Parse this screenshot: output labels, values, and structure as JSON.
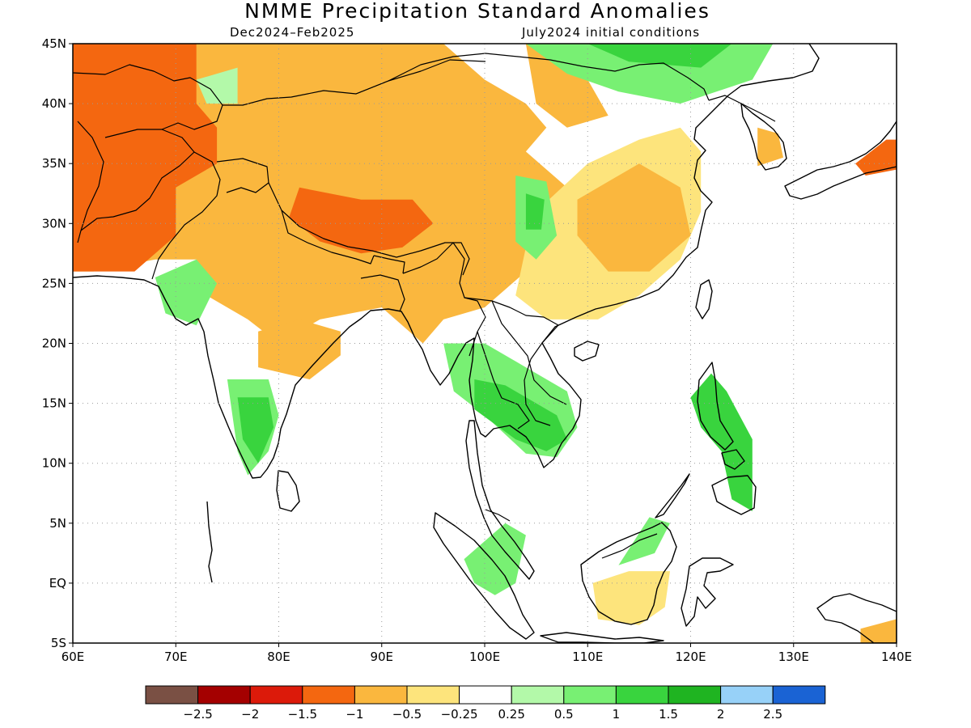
{
  "title": "NMME Precipitation Standard Anomalies",
  "subtitle_left": "Dec2024–Feb2025",
  "subtitle_right": "July2024 initial conditions",
  "map": {
    "lon_range": [
      60,
      140
    ],
    "lat_range": [
      -5,
      45
    ],
    "lon_ticks": [
      {
        "v": 60,
        "label": "60E"
      },
      {
        "v": 70,
        "label": "70E"
      },
      {
        "v": 80,
        "label": "80E"
      },
      {
        "v": 90,
        "label": "90E"
      },
      {
        "v": 100,
        "label": "100E"
      },
      {
        "v": 110,
        "label": "110E"
      },
      {
        "v": 120,
        "label": "120E"
      },
      {
        "v": 130,
        "label": "130E"
      },
      {
        "v": 140,
        "label": "140E"
      }
    ],
    "lat_ticks": [
      {
        "v": -5,
        "label": "5S"
      },
      {
        "v": 0,
        "label": "EQ"
      },
      {
        "v": 5,
        "label": "5N"
      },
      {
        "v": 10,
        "label": "10N"
      },
      {
        "v": 15,
        "label": "15N"
      },
      {
        "v": 20,
        "label": "20N"
      },
      {
        "v": 25,
        "label": "25N"
      },
      {
        "v": 30,
        "label": "30N"
      },
      {
        "v": 35,
        "label": "35N"
      },
      {
        "v": 40,
        "label": "40N"
      },
      {
        "v": 45,
        "label": "45N"
      }
    ],
    "grid": "dotted"
  },
  "legend": {
    "colors": [
      "#7a5044",
      "#a40000",
      "#dc1a0a",
      "#f46710",
      "#fab73e",
      "#fde47c",
      "#ffffff",
      "#b3f9a9",
      "#78f073",
      "#39d43e",
      "#1fb421",
      "#97d1f8",
      "#1a63d4"
    ],
    "labels": [
      "−2.5",
      "−2",
      "−1.5",
      "−1",
      "−0.5",
      "−0.25",
      "0.25",
      "0.5",
      "1",
      "1.5",
      "2",
      "2.5"
    ]
  },
  "anomaly_regions": [
    {
      "value": -0.5,
      "color": "#fab73e",
      "area": "Central Asia / Tibet / N China belt",
      "lonlat": [
        [
          60,
          45
        ],
        [
          96,
          45
        ],
        [
          100,
          42
        ],
        [
          104,
          40
        ],
        [
          106,
          38
        ],
        [
          104,
          36
        ],
        [
          108,
          33
        ],
        [
          104,
          30
        ],
        [
          104,
          26
        ],
        [
          100,
          23
        ],
        [
          96,
          22
        ],
        [
          94,
          20
        ],
        [
          90,
          23
        ],
        [
          84,
          22
        ],
        [
          80,
          20
        ],
        [
          77,
          22
        ],
        [
          73,
          24
        ],
        [
          72,
          27
        ],
        [
          68,
          27
        ],
        [
          62,
          26
        ],
        [
          60,
          26
        ]
      ]
    },
    {
      "value": -0.5,
      "color": "#fab73e",
      "area": "North Asia band",
      "lonlat": [
        [
          104,
          45
        ],
        [
          108,
          45
        ],
        [
          110,
          42
        ],
        [
          112,
          39
        ],
        [
          108,
          38
        ],
        [
          105,
          40
        ]
      ]
    },
    {
      "value": -1,
      "color": "#f46710",
      "area": "Afghanistan / Iran",
      "lonlat": [
        [
          60,
          45
        ],
        [
          72,
          45
        ],
        [
          72,
          40
        ],
        [
          74,
          38
        ],
        [
          74,
          35
        ],
        [
          70,
          33
        ],
        [
          70,
          29
        ],
        [
          66,
          26
        ],
        [
          60,
          26
        ]
      ]
    },
    {
      "value": -1,
      "color": "#f46710",
      "area": "Tibet",
      "lonlat": [
        [
          82,
          33
        ],
        [
          88,
          32
        ],
        [
          93,
          32
        ],
        [
          95,
          30
        ],
        [
          92,
          28
        ],
        [
          88,
          27.5
        ],
        [
          84,
          28.5
        ],
        [
          81,
          30.5
        ]
      ]
    },
    {
      "value": -0.5,
      "color": "#fab73e",
      "area": "Central India",
      "lonlat": [
        [
          78,
          21
        ],
        [
          82,
          22
        ],
        [
          86,
          21
        ],
        [
          86,
          19
        ],
        [
          83,
          17
        ],
        [
          78,
          18
        ]
      ]
    },
    {
      "value": -0.25,
      "color": "#fde47c",
      "area": "Eastern China",
      "lonlat": [
        [
          105,
          31
        ],
        [
          110,
          35
        ],
        [
          115,
          37
        ],
        [
          119,
          38
        ],
        [
          121,
          36
        ],
        [
          121,
          31
        ],
        [
          119,
          27
        ],
        [
          115,
          24
        ],
        [
          111,
          22
        ],
        [
          106,
          22
        ],
        [
          103,
          24
        ],
        [
          104,
          28
        ]
      ]
    },
    {
      "value": -0.5,
      "color": "#fab73e",
      "area": "East-central China",
      "lonlat": [
        [
          109,
          32
        ],
        [
          115,
          35
        ],
        [
          119,
          33
        ],
        [
          120,
          29
        ],
        [
          116,
          26
        ],
        [
          112,
          26
        ],
        [
          109,
          29
        ]
      ]
    },
    {
      "value": -0.25,
      "color": "#fde47c",
      "area": "Borneo",
      "lonlat": [
        [
          110.5,
          0
        ],
        [
          114,
          1
        ],
        [
          118,
          1
        ],
        [
          117.5,
          -2
        ],
        [
          115,
          -3.5
        ],
        [
          111,
          -3
        ]
      ]
    },
    {
      "value": -0.5,
      "color": "#fab73e",
      "area": "Korea",
      "lonlat": [
        [
          126.5,
          38
        ],
        [
          128.5,
          37.5
        ],
        [
          129,
          35.5
        ],
        [
          126.5,
          34.8
        ]
      ]
    },
    {
      "value": -1,
      "color": "#f46710",
      "area": "Japan",
      "lonlat": [
        [
          136,
          35
        ],
        [
          139,
          37
        ],
        [
          140,
          37
        ],
        [
          140,
          34.5
        ],
        [
          137,
          34
        ]
      ]
    },
    {
      "value": -0.5,
      "color": "#fab73e",
      "area": "New Guinea",
      "lonlat": [
        [
          136.5,
          -3.8
        ],
        [
          140,
          -3
        ],
        [
          140,
          -5
        ],
        [
          136.5,
          -5
        ]
      ]
    },
    {
      "value": 0.5,
      "color": "#78f073",
      "area": "Mongolia / NE China",
      "lonlat": [
        [
          104,
          45
        ],
        [
          128,
          45
        ],
        [
          126,
          42
        ],
        [
          119,
          40
        ],
        [
          113,
          41
        ],
        [
          108,
          42.5
        ]
      ]
    },
    {
      "value": 1,
      "color": "#39d43e",
      "area": "Northern Mongolia",
      "lonlat": [
        [
          110,
          45
        ],
        [
          124,
          45
        ],
        [
          121,
          43
        ],
        [
          114,
          43.5
        ]
      ]
    },
    {
      "value": 0.5,
      "color": "#78f073",
      "area": "Central China",
      "lonlat": [
        [
          103,
          34
        ],
        [
          106,
          33.5
        ],
        [
          107,
          29
        ],
        [
          105,
          27
        ],
        [
          103,
          28.5
        ]
      ]
    },
    {
      "value": 1,
      "color": "#39d43e",
      "area": "Central China core",
      "lonlat": [
        [
          104,
          32.5
        ],
        [
          105.8,
          32
        ],
        [
          105.5,
          29.5
        ],
        [
          104,
          29.5
        ]
      ]
    },
    {
      "value": 0.5,
      "color": "#78f073",
      "area": "Indochina",
      "lonlat": [
        [
          96,
          20
        ],
        [
          100,
          20
        ],
        [
          104,
          18
        ],
        [
          108,
          16
        ],
        [
          109,
          13
        ],
        [
          107,
          10.5
        ],
        [
          104,
          10.8
        ],
        [
          100,
          14
        ],
        [
          97,
          16
        ]
      ]
    },
    {
      "value": 1,
      "color": "#39d43e",
      "area": "Indochina core",
      "lonlat": [
        [
          99,
          17
        ],
        [
          102,
          16.5
        ],
        [
          107,
          14
        ],
        [
          108,
          12
        ],
        [
          106,
          11
        ],
        [
          103,
          12
        ],
        [
          99,
          14.5
        ]
      ]
    },
    {
      "value": 0.5,
      "color": "#78f073",
      "area": "South India",
      "lonlat": [
        [
          75,
          17
        ],
        [
          79,
          17
        ],
        [
          80,
          14
        ],
        [
          79,
          11
        ],
        [
          77,
          9
        ],
        [
          76,
          11
        ]
      ]
    },
    {
      "value": 1,
      "color": "#39d43e",
      "area": "South India core",
      "lonlat": [
        [
          76,
          15.5
        ],
        [
          79,
          15.5
        ],
        [
          79.5,
          13
        ],
        [
          78,
          10
        ],
        [
          76.5,
          12
        ]
      ]
    },
    {
      "value": 0.5,
      "color": "#78f073",
      "area": "Western India",
      "lonlat": [
        [
          68,
          25.5
        ],
        [
          72,
          27
        ],
        [
          74,
          25
        ],
        [
          72,
          21.5
        ],
        [
          69,
          22.5
        ]
      ]
    },
    {
      "value": 0.5,
      "color": "#78f073",
      "area": "Sumatra / Malaysia",
      "lonlat": [
        [
          98,
          2
        ],
        [
          102,
          5
        ],
        [
          104,
          4
        ],
        [
          103,
          0
        ],
        [
          101,
          -1
        ],
        [
          99,
          0
        ]
      ]
    },
    {
      "value": 0.5,
      "color": "#78f073",
      "area": "North Borneo",
      "lonlat": [
        [
          113,
          1.5
        ],
        [
          116,
          5.5
        ],
        [
          118,
          5
        ],
        [
          116.5,
          2.5
        ]
      ]
    },
    {
      "value": 1,
      "color": "#39d43e",
      "area": "Philippines",
      "lonlat": [
        [
          120,
          15.5
        ],
        [
          122,
          17.5
        ],
        [
          123.5,
          16
        ],
        [
          126,
          12
        ],
        [
          126,
          6
        ],
        [
          124,
          7
        ],
        [
          123,
          11
        ],
        [
          121,
          13
        ]
      ]
    },
    {
      "value": 0.25,
      "color": "#b3f9a9",
      "area": "Northern Tien Shan",
      "lonlat": [
        [
          72,
          42
        ],
        [
          76,
          43
        ],
        [
          76,
          40
        ],
        [
          73,
          40
        ]
      ]
    }
  ]
}
